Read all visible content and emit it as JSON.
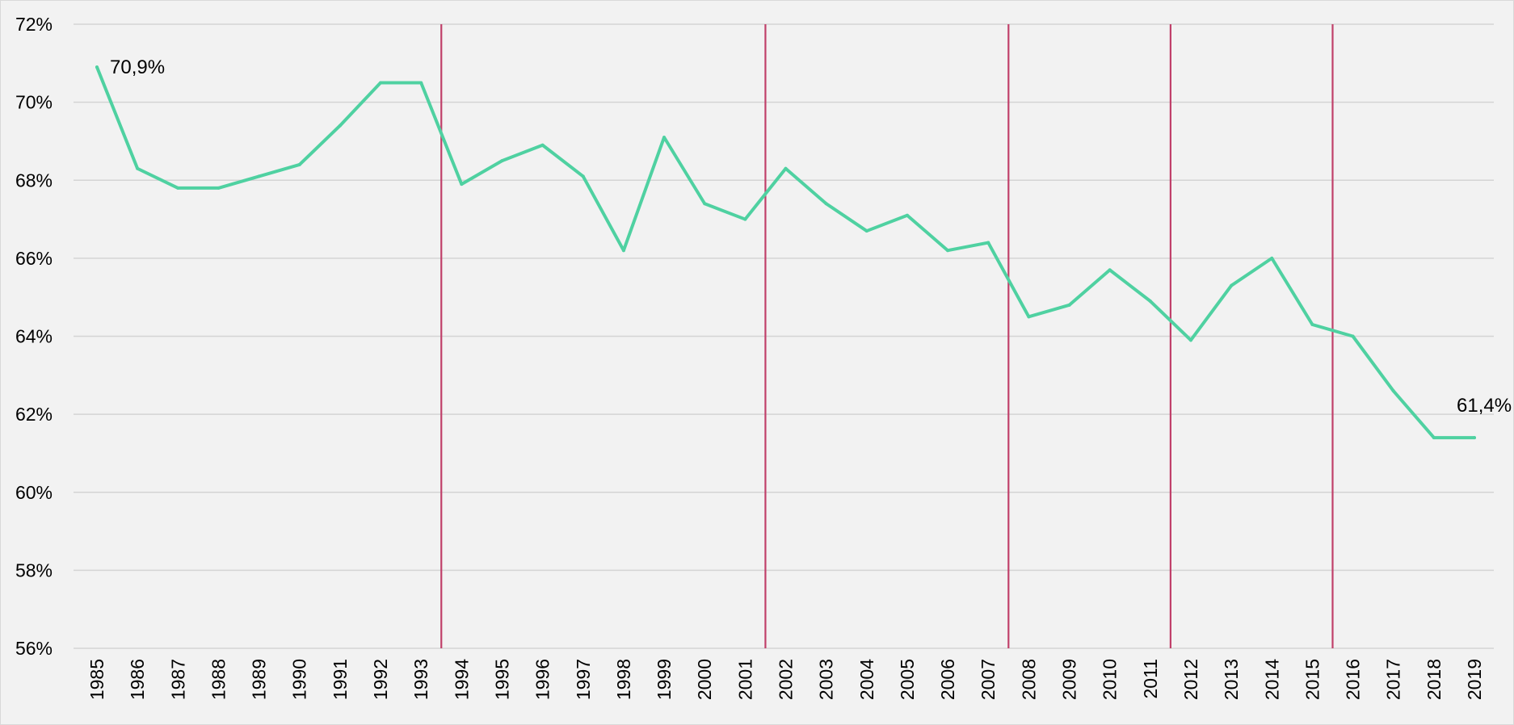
{
  "chart_data": {
    "type": "line",
    "title": "",
    "xlabel": "",
    "ylabel": "",
    "categories": [
      "1985",
      "1986",
      "1987",
      "1988",
      "1989",
      "1990",
      "1991",
      "1992",
      "1993",
      "1994",
      "1995",
      "1996",
      "1997",
      "1998",
      "1999",
      "2000",
      "2001",
      "2002",
      "2003",
      "2004",
      "2005",
      "2006",
      "2007",
      "2008",
      "2009",
      "2010",
      "2011",
      "2012",
      "2013",
      "2014",
      "2015",
      "2016",
      "2017",
      "2018",
      "2019"
    ],
    "series": [
      {
        "values": [
          70.9,
          68.3,
          67.8,
          67.8,
          68.1,
          68.4,
          69.4,
          70.5,
          70.5,
          67.9,
          68.5,
          68.9,
          68.1,
          66.2,
          69.1,
          67.4,
          67.0,
          68.3,
          67.4,
          66.7,
          67.1,
          66.2,
          66.4,
          64.5,
          64.8,
          65.7,
          64.9,
          63.9,
          65.3,
          66.0,
          64.3,
          64.0,
          62.6,
          61.4,
          61.4
        ],
        "color": "#4fd1a1"
      }
    ],
    "ylim": [
      56,
      72
    ],
    "yticks": [
      56,
      58,
      60,
      62,
      64,
      66,
      68,
      70,
      72
    ],
    "ytick_labels": [
      "56%",
      "58%",
      "60%",
      "62%",
      "64%",
      "66%",
      "68%",
      "70%",
      "72%"
    ],
    "grid": true,
    "legend": "none",
    "vertical_markers_between": [
      [
        "1993",
        "1994"
      ],
      [
        "2001",
        "2002"
      ],
      [
        "2007",
        "2008"
      ],
      [
        "2011",
        "2012"
      ],
      [
        "2015",
        "2016"
      ]
    ],
    "marker_color": "#c0406a",
    "data_labels": [
      {
        "category": "1985",
        "text": "70,9%"
      },
      {
        "category": "2019",
        "text": "61,4%"
      }
    ]
  }
}
